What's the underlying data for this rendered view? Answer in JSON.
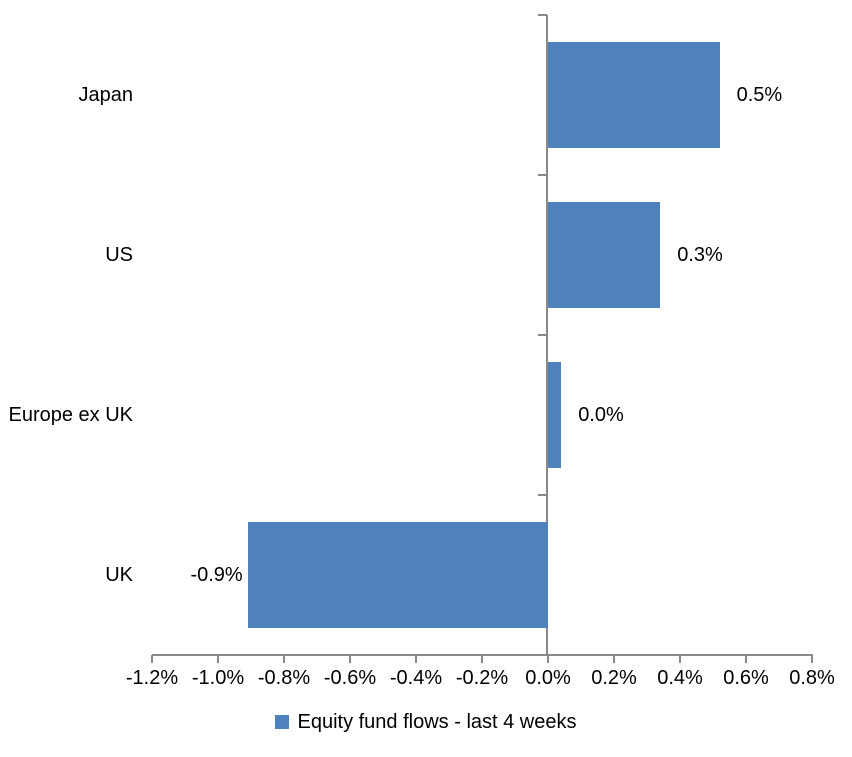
{
  "page": {
    "background": "#FFFFFF"
  },
  "chart_data": {
    "type": "bar",
    "orientation": "horizontal",
    "title": "",
    "xlabel": "",
    "ylabel": "",
    "categories": [
      "Japan",
      "US",
      "Europe ex UK",
      "UK"
    ],
    "values": [
      0.5,
      0.3,
      0.0,
      -0.9
    ],
    "value_labels": [
      "0.5%",
      "0.3%",
      "0.0%",
      "-0.9%"
    ],
    "bar_lengths_pct_estimated": [
      0.52,
      0.34,
      0.04,
      -0.91
    ],
    "series": [
      {
        "name": "Equity fund flows - last 4 weeks",
        "values": [
          0.5,
          0.3,
          0.0,
          -0.9
        ]
      }
    ],
    "x_axis": {
      "min": -1.2,
      "max": 0.8,
      "step": 0.2,
      "tick_labels": [
        "-1.2%",
        "-1.0%",
        "-0.8%",
        "-0.6%",
        "-0.4%",
        "-0.2%",
        "0.0%",
        "0.2%",
        "0.4%",
        "0.6%",
        "0.8%"
      ]
    },
    "legend": {
      "position": "bottom-center",
      "marker": "square",
      "marker_color": "#4F81BD",
      "label": "Equity fund flows - last 4 weeks"
    },
    "grid": false,
    "data_labels": true,
    "colors": {
      "bar": "#4F81BD",
      "axis_line": "#898989",
      "text": "#000000",
      "background": "#FFFFFF"
    }
  }
}
